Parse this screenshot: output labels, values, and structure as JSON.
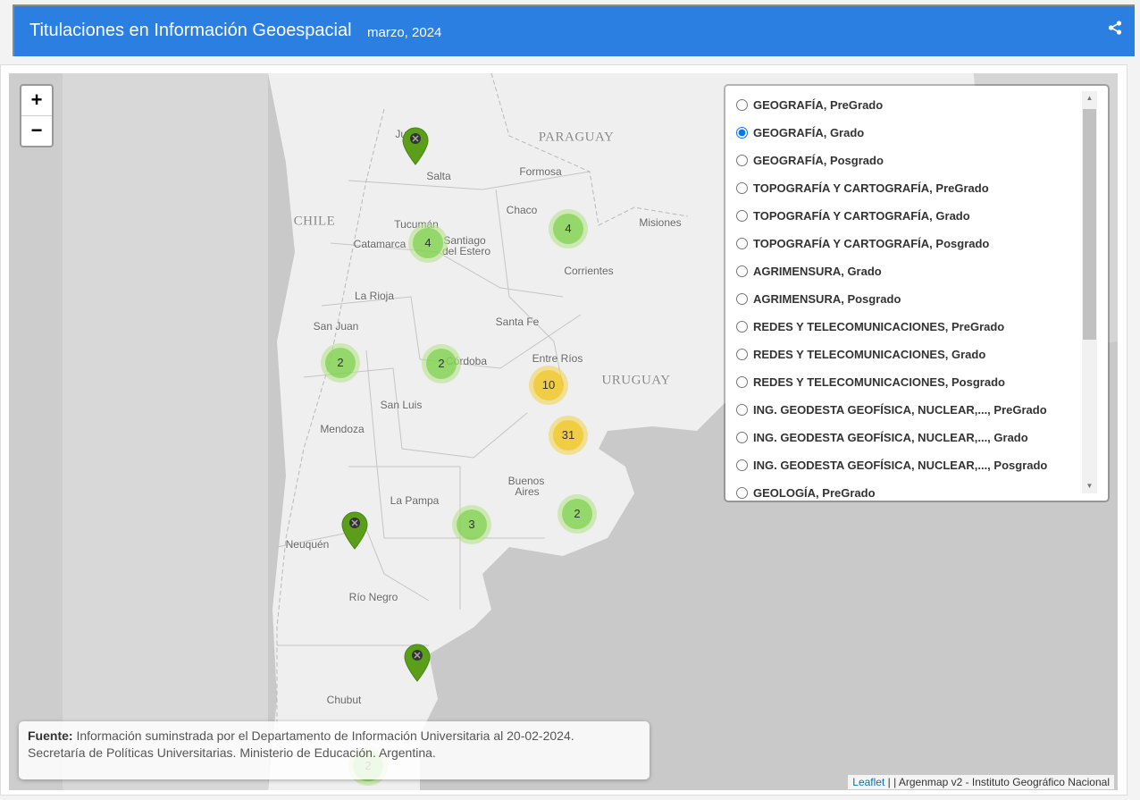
{
  "header": {
    "title": "Titulaciones en Información Geoespacial",
    "date": "marzo, 2024",
    "share_icon": "share-icon"
  },
  "colors": {
    "header": "#2a7fe0",
    "cluster_small": "#6ecc39",
    "cluster_medium": "#f0c20c",
    "pin": "#5a9e1a"
  },
  "map": {
    "zoom_in": "+",
    "zoom_out": "−",
    "labels": {
      "paraguay": "PARAGUAY",
      "chile": "CHILE",
      "uruguay": "URUGUAY",
      "formosa": "Formosa",
      "salta": "Salta",
      "jujuy": "Juj",
      "chaco": "Chaco",
      "misiones": "Misiones",
      "tucuman": "Tucumán",
      "catamarca": "Catamarca",
      "santiago1": "Santiago",
      "santiago2": "del Estero",
      "corrientes": "Corrientes",
      "larioja": "La Rioja",
      "santafe": "Santa Fe",
      "sanjuan": "San Juan",
      "cordoba": "Córdoba",
      "entrerios": "Entre Ríos",
      "sanluis": "San Luis",
      "mendoza": "Mendoza",
      "ba1": "Buenos",
      "ba2": "Aires",
      "lapampa": "La Pampa",
      "neuquen": "Neuquén",
      "rionegro": "Río Negro",
      "chubut": "Chubut"
    },
    "clusters": [
      {
        "count": "4",
        "level": "small"
      },
      {
        "count": "4",
        "level": "small"
      },
      {
        "count": "2",
        "level": "small"
      },
      {
        "count": "2",
        "level": "small"
      },
      {
        "count": "10",
        "level": "medium"
      },
      {
        "count": "31",
        "level": "medium"
      },
      {
        "count": "3",
        "level": "small"
      },
      {
        "count": "2",
        "level": "small"
      },
      {
        "count": "2",
        "level": "small"
      }
    ]
  },
  "layers": {
    "selected": "GEOGRAFÍA, Grado",
    "items": [
      "GEOGRAFÍA, PreGrado",
      "GEOGRAFÍA, Grado",
      "GEOGRAFÍA, Posgrado",
      "TOPOGRAFÍA Y CARTOGRAFÍA, PreGrado",
      "TOPOGRAFÍA Y CARTOGRAFÍA, Grado",
      "TOPOGRAFÍA Y CARTOGRAFÍA, Posgrado",
      "AGRIMENSURA, Grado",
      "AGRIMENSURA, Posgrado",
      "REDES Y TELECOMUNICACIONES, PreGrado",
      "REDES Y TELECOMUNICACIONES, Grado",
      "REDES Y TELECOMUNICACIONES, Posgrado",
      "ING. GEODESTA GEOFÍSICA, NUCLEAR,..., PreGrado",
      "ING. GEODESTA GEOFÍSICA, NUCLEAR,..., Grado",
      "ING. GEODESTA GEOFÍSICA, NUCLEAR,..., Posgrado",
      "GEOLOGÍA, PreGrado"
    ]
  },
  "source": {
    "label": "Fuente:",
    "line1": "Información suminstrada por el Departamento de Información Universitaria al 20-02-2024.",
    "line2": "Secretaría de Políticas Universitarias. Ministerio de Educación. Argentina."
  },
  "attribution": {
    "leaflet": "Leaflet",
    "text": " | | Argenmap v2 - Instituto Geográfico Nacional"
  }
}
